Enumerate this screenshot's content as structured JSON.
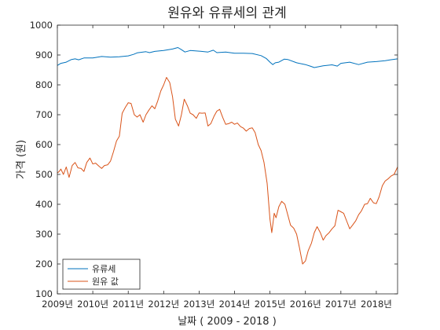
{
  "chart_data": {
    "type": "line",
    "title": "원유와 유류세의 관계",
    "xlabel": "날짜 ( 2009 - 2018 )",
    "ylabel": "가격 (원)",
    "xlim": [
      2009.0,
      2018.6
    ],
    "ylim": [
      100,
      1000
    ],
    "x_ticks": [
      {
        "value": 2009,
        "label": "2009년"
      },
      {
        "value": 2010,
        "label": "2010년"
      },
      {
        "value": 2011,
        "label": "2011년"
      },
      {
        "value": 2012,
        "label": "2012년"
      },
      {
        "value": 2013,
        "label": "2013년"
      },
      {
        "value": 2014,
        "label": "2014년"
      },
      {
        "value": 2015,
        "label": "2015년"
      },
      {
        "value": 2016,
        "label": "2016년"
      },
      {
        "value": 2017,
        "label": "2017년"
      },
      {
        "value": 2018,
        "label": "2018년"
      }
    ],
    "y_ticks": [
      100,
      200,
      300,
      400,
      500,
      600,
      700,
      800,
      900,
      1000
    ],
    "grid": false,
    "legend_position": "bottom-left",
    "series": [
      {
        "name": "유류세",
        "color": "#0072BD",
        "points": [
          [
            2009.0,
            865
          ],
          [
            2009.1,
            872
          ],
          [
            2009.25,
            876
          ],
          [
            2009.4,
            885
          ],
          [
            2009.5,
            887
          ],
          [
            2009.6,
            884
          ],
          [
            2009.75,
            890
          ],
          [
            2010.0,
            890
          ],
          [
            2010.25,
            895
          ],
          [
            2010.5,
            893
          ],
          [
            2010.75,
            894
          ],
          [
            2011.0,
            897
          ],
          [
            2011.15,
            902
          ],
          [
            2011.25,
            907
          ],
          [
            2011.5,
            911
          ],
          [
            2011.6,
            908
          ],
          [
            2011.75,
            912
          ],
          [
            2012.0,
            915
          ],
          [
            2012.25,
            920
          ],
          [
            2012.4,
            925
          ],
          [
            2012.5,
            918
          ],
          [
            2012.6,
            910
          ],
          [
            2012.75,
            915
          ],
          [
            2013.0,
            913
          ],
          [
            2013.25,
            910
          ],
          [
            2013.4,
            916
          ],
          [
            2013.5,
            908
          ],
          [
            2013.75,
            910
          ],
          [
            2014.0,
            906
          ],
          [
            2014.25,
            906
          ],
          [
            2014.5,
            905
          ],
          [
            2014.75,
            898
          ],
          [
            2014.9,
            888
          ],
          [
            2015.0,
            876
          ],
          [
            2015.08,
            868
          ],
          [
            2015.15,
            874
          ],
          [
            2015.25,
            876
          ],
          [
            2015.4,
            886
          ],
          [
            2015.5,
            885
          ],
          [
            2015.75,
            874
          ],
          [
            2016.0,
            868
          ],
          [
            2016.15,
            862
          ],
          [
            2016.25,
            858
          ],
          [
            2016.5,
            864
          ],
          [
            2016.75,
            867
          ],
          [
            2016.9,
            863
          ],
          [
            2017.0,
            872
          ],
          [
            2017.25,
            876
          ],
          [
            2017.5,
            868
          ],
          [
            2017.75,
            876
          ],
          [
            2018.0,
            878
          ],
          [
            2018.25,
            881
          ],
          [
            2018.4,
            884
          ],
          [
            2018.6,
            887
          ]
        ]
      },
      {
        "name": "원유 값",
        "color": "#D95319",
        "points": [
          [
            2009.0,
            505
          ],
          [
            2009.05,
            510
          ],
          [
            2009.1,
            518
          ],
          [
            2009.17,
            500
          ],
          [
            2009.25,
            525
          ],
          [
            2009.33,
            490
          ],
          [
            2009.42,
            530
          ],
          [
            2009.5,
            540
          ],
          [
            2009.58,
            522
          ],
          [
            2009.67,
            520
          ],
          [
            2009.75,
            510
          ],
          [
            2009.83,
            540
          ],
          [
            2009.92,
            555
          ],
          [
            2010.0,
            535
          ],
          [
            2010.08,
            538
          ],
          [
            2010.17,
            528
          ],
          [
            2010.25,
            520
          ],
          [
            2010.33,
            530
          ],
          [
            2010.42,
            532
          ],
          [
            2010.5,
            545
          ],
          [
            2010.58,
            575
          ],
          [
            2010.67,
            612
          ],
          [
            2010.75,
            628
          ],
          [
            2010.83,
            705
          ],
          [
            2010.92,
            725
          ],
          [
            2011.0,
            740
          ],
          [
            2011.08,
            738
          ],
          [
            2011.17,
            700
          ],
          [
            2011.25,
            692
          ],
          [
            2011.33,
            700
          ],
          [
            2011.42,
            675
          ],
          [
            2011.5,
            700
          ],
          [
            2011.58,
            715
          ],
          [
            2011.67,
            730
          ],
          [
            2011.75,
            720
          ],
          [
            2011.83,
            745
          ],
          [
            2011.92,
            780
          ],
          [
            2012.0,
            800
          ],
          [
            2012.08,
            825
          ],
          [
            2012.17,
            808
          ],
          [
            2012.25,
            760
          ],
          [
            2012.33,
            685
          ],
          [
            2012.42,
            662
          ],
          [
            2012.5,
            700
          ],
          [
            2012.58,
            752
          ],
          [
            2012.67,
            730
          ],
          [
            2012.75,
            705
          ],
          [
            2012.83,
            700
          ],
          [
            2012.92,
            688
          ],
          [
            2013.0,
            706
          ],
          [
            2013.08,
            705
          ],
          [
            2013.17,
            706
          ],
          [
            2013.25,
            662
          ],
          [
            2013.33,
            670
          ],
          [
            2013.42,
            695
          ],
          [
            2013.5,
            712
          ],
          [
            2013.58,
            718
          ],
          [
            2013.67,
            690
          ],
          [
            2013.75,
            668
          ],
          [
            2013.83,
            670
          ],
          [
            2013.92,
            675
          ],
          [
            2014.0,
            668
          ],
          [
            2014.08,
            672
          ],
          [
            2014.17,
            660
          ],
          [
            2014.25,
            655
          ],
          [
            2014.33,
            645
          ],
          [
            2014.42,
            654
          ],
          [
            2014.5,
            656
          ],
          [
            2014.58,
            640
          ],
          [
            2014.67,
            600
          ],
          [
            2014.75,
            580
          ],
          [
            2014.83,
            540
          ],
          [
            2014.92,
            470
          ],
          [
            2015.0,
            350
          ],
          [
            2015.05,
            305
          ],
          [
            2015.12,
            370
          ],
          [
            2015.17,
            355
          ],
          [
            2015.25,
            392
          ],
          [
            2015.33,
            410
          ],
          [
            2015.42,
            400
          ],
          [
            2015.5,
            365
          ],
          [
            2015.58,
            330
          ],
          [
            2015.67,
            320
          ],
          [
            2015.75,
            300
          ],
          [
            2015.83,
            255
          ],
          [
            2015.92,
            200
          ],
          [
            2016.0,
            210
          ],
          [
            2016.08,
            245
          ],
          [
            2016.17,
            270
          ],
          [
            2016.25,
            305
          ],
          [
            2016.33,
            325
          ],
          [
            2016.42,
            305
          ],
          [
            2016.5,
            280
          ],
          [
            2016.58,
            295
          ],
          [
            2016.67,
            305
          ],
          [
            2016.75,
            318
          ],
          [
            2016.83,
            328
          ],
          [
            2016.92,
            380
          ],
          [
            2017.0,
            375
          ],
          [
            2017.08,
            370
          ],
          [
            2017.17,
            342
          ],
          [
            2017.25,
            318
          ],
          [
            2017.33,
            330
          ],
          [
            2017.42,
            345
          ],
          [
            2017.5,
            365
          ],
          [
            2017.58,
            378
          ],
          [
            2017.67,
            400
          ],
          [
            2017.75,
            402
          ],
          [
            2017.83,
            420
          ],
          [
            2017.92,
            405
          ],
          [
            2018.0,
            402
          ],
          [
            2018.08,
            425
          ],
          [
            2018.17,
            462
          ],
          [
            2018.25,
            478
          ],
          [
            2018.33,
            485
          ],
          [
            2018.42,
            495
          ],
          [
            2018.5,
            500
          ],
          [
            2018.6,
            525
          ]
        ]
      }
    ]
  }
}
